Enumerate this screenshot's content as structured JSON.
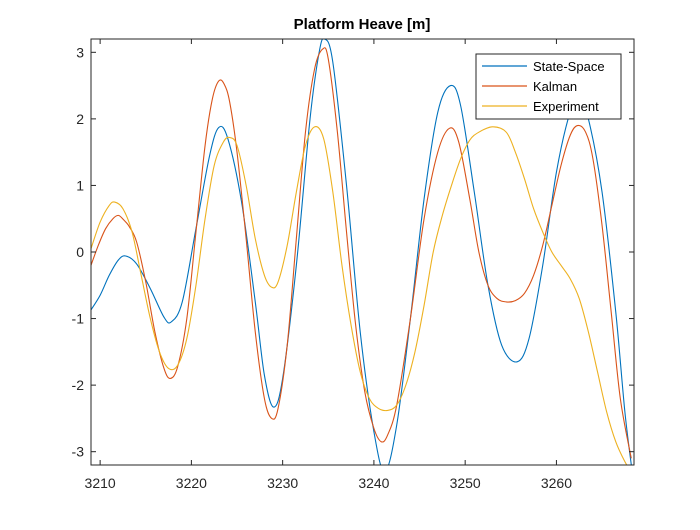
{
  "chart_data": {
    "type": "line",
    "title": "Platform Heave [m]",
    "xlabel": "",
    "ylabel": "",
    "xlim": [
      3209,
      3268.5
    ],
    "ylim": [
      -3.2,
      3.2
    ],
    "xticks": [
      3210,
      3220,
      3230,
      3240,
      3250,
      3260
    ],
    "yticks": [
      3,
      2,
      1,
      0,
      -1,
      -2,
      -3
    ],
    "grid": false,
    "legend_position": "top-right",
    "series": [
      {
        "name": "State-Space",
        "color": "#0072BD",
        "points": [
          [
            3209.0,
            -0.87
          ],
          [
            3210.0,
            -0.65
          ],
          [
            3211.0,
            -0.35
          ],
          [
            3212.0,
            -0.12
          ],
          [
            3212.8,
            -0.06
          ],
          [
            3214.0,
            -0.18
          ],
          [
            3215.5,
            -0.55
          ],
          [
            3217.0,
            -0.98
          ],
          [
            3217.8,
            -1.05
          ],
          [
            3219.0,
            -0.75
          ],
          [
            3220.5,
            0.35
          ],
          [
            3222.0,
            1.45
          ],
          [
            3223.0,
            1.87
          ],
          [
            3224.0,
            1.7
          ],
          [
            3225.5,
            0.75
          ],
          [
            3227.0,
            -0.75
          ],
          [
            3228.0,
            -1.85
          ],
          [
            3229.0,
            -2.33
          ],
          [
            3230.0,
            -1.9
          ],
          [
            3231.5,
            -0.2
          ],
          [
            3233.0,
            2.0
          ],
          [
            3234.0,
            3.0
          ],
          [
            3234.6,
            3.2
          ],
          [
            3235.5,
            2.85
          ],
          [
            3237.0,
            1.0
          ],
          [
            3238.5,
            -1.2
          ],
          [
            3240.0,
            -2.7
          ],
          [
            3241.2,
            -3.3
          ],
          [
            3242.5,
            -2.6
          ],
          [
            3244.0,
            -1.0
          ],
          [
            3245.5,
            0.8
          ],
          [
            3247.0,
            2.1
          ],
          [
            3248.4,
            2.5
          ],
          [
            3249.5,
            2.2
          ],
          [
            3251.0,
            0.9
          ],
          [
            3252.5,
            -0.5
          ],
          [
            3254.0,
            -1.4
          ],
          [
            3255.7,
            -1.65
          ],
          [
            3257.0,
            -1.3
          ],
          [
            3258.5,
            -0.2
          ],
          [
            3260.0,
            1.2
          ],
          [
            3261.5,
            2.1
          ],
          [
            3262.5,
            2.3
          ],
          [
            3263.5,
            2.0
          ],
          [
            3265.0,
            0.9
          ],
          [
            3266.5,
            -0.9
          ],
          [
            3267.5,
            -2.4
          ],
          [
            3268.3,
            -3.3
          ]
        ]
      },
      {
        "name": "Kalman",
        "color": "#D95319",
        "points": [
          [
            3209.0,
            -0.2
          ],
          [
            3209.8,
            0.1
          ],
          [
            3210.6,
            0.35
          ],
          [
            3211.4,
            0.5
          ],
          [
            3212.0,
            0.55
          ],
          [
            3212.6,
            0.48
          ],
          [
            3213.2,
            0.38
          ],
          [
            3214.0,
            0.15
          ],
          [
            3215.0,
            -0.45
          ],
          [
            3216.0,
            -1.2
          ],
          [
            3217.0,
            -1.75
          ],
          [
            3217.7,
            -1.9
          ],
          [
            3218.5,
            -1.72
          ],
          [
            3219.5,
            -1.0
          ],
          [
            3220.5,
            0.3
          ],
          [
            3221.5,
            1.6
          ],
          [
            3222.3,
            2.3
          ],
          [
            3223.0,
            2.57
          ],
          [
            3223.6,
            2.52
          ],
          [
            3224.2,
            2.25
          ],
          [
            3225.0,
            1.5
          ],
          [
            3226.0,
            0.2
          ],
          [
            3227.0,
            -1.2
          ],
          [
            3228.0,
            -2.2
          ],
          [
            3228.8,
            -2.5
          ],
          [
            3229.5,
            -2.35
          ],
          [
            3230.5,
            -1.4
          ],
          [
            3231.5,
            0.2
          ],
          [
            3232.5,
            1.8
          ],
          [
            3233.5,
            2.75
          ],
          [
            3234.4,
            3.05
          ],
          [
            3235.0,
            2.9
          ],
          [
            3236.0,
            1.8
          ],
          [
            3237.0,
            0.3
          ],
          [
            3238.0,
            -1.1
          ],
          [
            3239.0,
            -2.1
          ],
          [
            3240.0,
            -2.65
          ],
          [
            3240.8,
            -2.85
          ],
          [
            3241.5,
            -2.75
          ],
          [
            3242.5,
            -2.3
          ],
          [
            3244.0,
            -1.0
          ],
          [
            3245.5,
            0.5
          ],
          [
            3247.0,
            1.5
          ],
          [
            3248.3,
            1.86
          ],
          [
            3249.3,
            1.65
          ],
          [
            3250.5,
            0.8
          ],
          [
            3251.5,
            0.0
          ],
          [
            3252.5,
            -0.5
          ],
          [
            3253.5,
            -0.7
          ],
          [
            3254.5,
            -0.75
          ],
          [
            3255.5,
            -0.73
          ],
          [
            3256.5,
            -0.62
          ],
          [
            3257.5,
            -0.35
          ],
          [
            3258.5,
            0.1
          ],
          [
            3259.5,
            0.7
          ],
          [
            3260.5,
            1.3
          ],
          [
            3261.5,
            1.75
          ],
          [
            3262.3,
            1.9
          ],
          [
            3263.2,
            1.8
          ],
          [
            3264.0,
            1.4
          ],
          [
            3265.0,
            0.4
          ],
          [
            3266.0,
            -0.9
          ],
          [
            3267.0,
            -2.2
          ],
          [
            3268.2,
            -3.1
          ]
        ]
      },
      {
        "name": "Experiment",
        "color": "#EDB120",
        "points": [
          [
            3209.0,
            0.05
          ],
          [
            3210.0,
            0.45
          ],
          [
            3211.0,
            0.7
          ],
          [
            3211.6,
            0.75
          ],
          [
            3212.5,
            0.65
          ],
          [
            3213.5,
            0.3
          ],
          [
            3214.5,
            -0.35
          ],
          [
            3215.5,
            -1.0
          ],
          [
            3216.5,
            -1.5
          ],
          [
            3217.5,
            -1.75
          ],
          [
            3218.5,
            -1.7
          ],
          [
            3219.5,
            -1.3
          ],
          [
            3220.5,
            -0.5
          ],
          [
            3221.5,
            0.5
          ],
          [
            3222.5,
            1.3
          ],
          [
            3223.5,
            1.65
          ],
          [
            3224.2,
            1.72
          ],
          [
            3225.0,
            1.6
          ],
          [
            3226.0,
            1.0
          ],
          [
            3227.0,
            0.2
          ],
          [
            3228.0,
            -0.35
          ],
          [
            3228.8,
            -0.53
          ],
          [
            3229.5,
            -0.45
          ],
          [
            3230.5,
            0.1
          ],
          [
            3231.5,
            0.9
          ],
          [
            3232.5,
            1.6
          ],
          [
            3233.5,
            1.88
          ],
          [
            3234.5,
            1.7
          ],
          [
            3235.5,
            0.9
          ],
          [
            3236.5,
            -0.2
          ],
          [
            3237.5,
            -1.1
          ],
          [
            3238.5,
            -1.8
          ],
          [
            3239.5,
            -2.2
          ],
          [
            3240.5,
            -2.35
          ],
          [
            3241.5,
            -2.38
          ],
          [
            3242.5,
            -2.3
          ],
          [
            3243.5,
            -2.0
          ],
          [
            3244.5,
            -1.5
          ],
          [
            3245.5,
            -0.8
          ],
          [
            3246.5,
            0.0
          ],
          [
            3247.5,
            0.55
          ],
          [
            3248.5,
            1.0
          ],
          [
            3249.5,
            1.4
          ],
          [
            3250.5,
            1.68
          ],
          [
            3251.5,
            1.8
          ],
          [
            3253.0,
            1.88
          ],
          [
            3254.5,
            1.8
          ],
          [
            3255.5,
            1.5
          ],
          [
            3256.5,
            1.1
          ],
          [
            3257.5,
            0.65
          ],
          [
            3258.5,
            0.3
          ],
          [
            3259.5,
            0.0
          ],
          [
            3260.5,
            -0.2
          ],
          [
            3261.5,
            -0.4
          ],
          [
            3262.5,
            -0.7
          ],
          [
            3263.5,
            -1.2
          ],
          [
            3264.5,
            -1.8
          ],
          [
            3265.5,
            -2.4
          ],
          [
            3266.5,
            -2.85
          ],
          [
            3267.5,
            -3.15
          ],
          [
            3268.2,
            -3.3
          ]
        ]
      }
    ]
  }
}
